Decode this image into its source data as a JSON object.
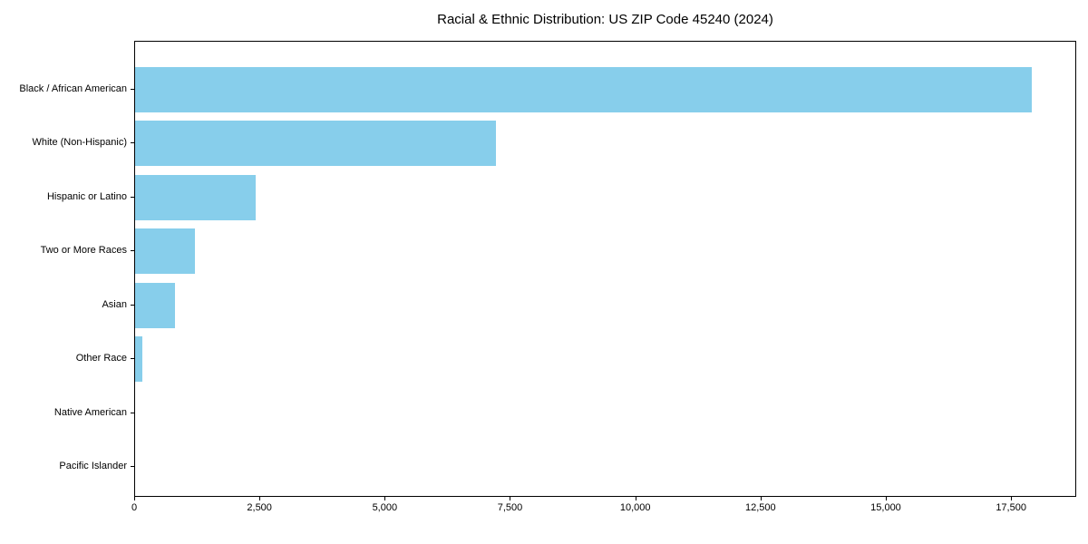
{
  "chart_data": {
    "type": "bar",
    "orientation": "horizontal",
    "title": "Racial & Ethnic Distribution: US ZIP Code 45240 (2024)",
    "xlabel": "",
    "ylabel": "",
    "categories": [
      "Black / African American",
      "White (Non-Hispanic)",
      "Hispanic or Latino",
      "Two or More Races",
      "Asian",
      "Other Race",
      "Native American",
      "Pacific Islander"
    ],
    "values": [
      17900,
      7200,
      2400,
      1200,
      800,
      150,
      0,
      0
    ],
    "xlim": [
      0,
      18800
    ],
    "x_ticks": [
      0,
      2500,
      5000,
      7500,
      10000,
      12500,
      15000,
      17500
    ],
    "x_tick_labels": [
      "0",
      "2,500",
      "5,000",
      "7,500",
      "10,000",
      "12,500",
      "15,000",
      "17,500"
    ],
    "bar_color": "#87CEEB",
    "axis_color": "#000000",
    "background_color": "#ffffff",
    "grid": false,
    "legend": null
  }
}
